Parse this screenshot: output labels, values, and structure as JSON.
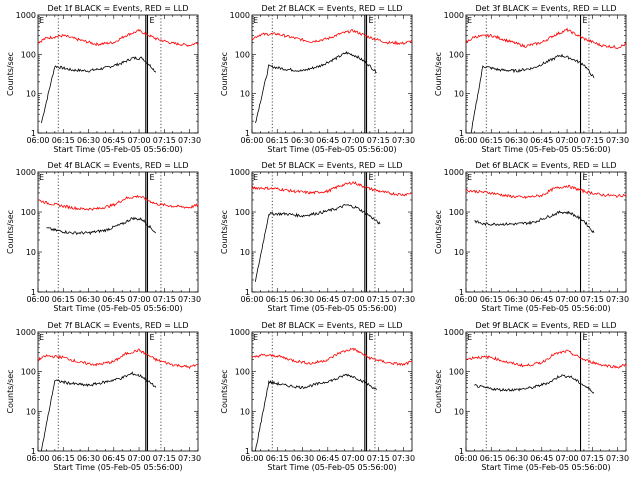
{
  "figure": {
    "xlabel": "Start Time (05-Feb-05 05:56:00)",
    "ylabel": "Counts/sec",
    "xticks": [
      "06:00",
      "06:15",
      "06:30",
      "06:45",
      "07:00",
      "07:15",
      "07:30"
    ],
    "yticks": [
      "1",
      "10",
      "100",
      "1000"
    ],
    "flag_label": "E"
  },
  "chart_data": [
    {
      "type": "line",
      "title": "Det 1f BLACK = Events, RED = LLD",
      "xlim": [
        "06:00",
        "07:35"
      ],
      "ylim": [
        1,
        1000
      ],
      "yscale": "log",
      "series": [
        {
          "color": "#000000",
          "x": [
            "06:02",
            "06:10",
            "06:20",
            "06:30",
            "06:40",
            "06:50",
            "06:56",
            "07:02",
            "07:08",
            "07:10"
          ],
          "y": [
            1.8,
            50,
            40,
            38,
            45,
            60,
            80,
            80,
            45,
            35
          ]
        },
        {
          "color": "#ff0000",
          "x": [
            "06:00",
            "06:05",
            "06:15",
            "06:25",
            "06:35",
            "06:45",
            "06:52",
            "07:00",
            "07:10",
            "07:20",
            "07:30",
            "07:35"
          ],
          "y": [
            200,
            260,
            300,
            230,
            180,
            200,
            300,
            400,
            250,
            190,
            170,
            200
          ]
        }
      ],
      "vlines_dotted": [
        "06:12",
        "07:13"
      ],
      "vlines_solid": [
        "07:04",
        "07:05"
      ]
    },
    {
      "type": "line",
      "title": "Det 2f BLACK = Events, RED = LLD",
      "xlim": [
        "06:00",
        "07:35"
      ],
      "ylim": [
        1,
        1000
      ],
      "yscale": "log",
      "series": [
        {
          "color": "#000000",
          "x": [
            "06:02",
            "06:10",
            "06:20",
            "06:30",
            "06:40",
            "06:50",
            "06:56",
            "07:02",
            "07:08",
            "07:14"
          ],
          "y": [
            1.8,
            50,
            42,
            38,
            50,
            80,
            110,
            90,
            60,
            35
          ]
        },
        {
          "color": "#ff0000",
          "x": [
            "06:00",
            "06:05",
            "06:15",
            "06:25",
            "06:35",
            "06:45",
            "06:52",
            "07:00",
            "07:10",
            "07:20",
            "07:30",
            "07:35"
          ],
          "y": [
            250,
            320,
            330,
            260,
            210,
            250,
            330,
            400,
            270,
            200,
            190,
            220
          ]
        }
      ],
      "vlines_dotted": [
        "06:12",
        "07:13"
      ],
      "vlines_solid": [
        "07:07",
        "07:08"
      ]
    },
    {
      "type": "line",
      "title": "Det 3f BLACK = Events, RED = LLD",
      "xlim": [
        "06:00",
        "07:35"
      ],
      "ylim": [
        1,
        1000
      ],
      "yscale": "log",
      "series": [
        {
          "color": "#000000",
          "x": [
            "06:03",
            "06:10",
            "06:20",
            "06:30",
            "06:40",
            "06:50",
            "06:56",
            "07:02",
            "07:10",
            "07:16"
          ],
          "y": [
            1,
            50,
            40,
            38,
            45,
            70,
            95,
            80,
            55,
            25
          ]
        },
        {
          "color": "#ff0000",
          "x": [
            "06:00",
            "06:05",
            "06:15",
            "06:25",
            "06:35",
            "06:45",
            "06:52",
            "07:00",
            "07:10",
            "07:20",
            "07:30",
            "07:35"
          ],
          "y": [
            200,
            280,
            300,
            220,
            160,
            200,
            300,
            420,
            250,
            170,
            150,
            180
          ]
        }
      ],
      "vlines_dotted": [
        "06:12",
        "07:13"
      ],
      "vlines_solid": [
        "07:08"
      ]
    },
    {
      "type": "line",
      "title": "Det 4f BLACK = Events, RED = LLD",
      "xlim": [
        "06:00",
        "07:35"
      ],
      "ylim": [
        1,
        1000
      ],
      "yscale": "log",
      "series": [
        {
          "color": "#000000",
          "x": [
            "06:05",
            "06:10",
            "06:20",
            "06:30",
            "06:40",
            "06:50",
            "06:56",
            "07:02",
            "07:10"
          ],
          "y": [
            40,
            35,
            30,
            30,
            35,
            50,
            70,
            65,
            30
          ]
        },
        {
          "color": "#ff0000",
          "x": [
            "06:00",
            "06:05",
            "06:15",
            "06:25",
            "06:35",
            "06:45",
            "06:52",
            "07:00",
            "07:10",
            "07:20",
            "07:30",
            "07:35"
          ],
          "y": [
            200,
            170,
            140,
            120,
            120,
            150,
            220,
            250,
            160,
            140,
            130,
            150
          ]
        }
      ],
      "vlines_dotted": [
        "06:12",
        "07:13"
      ],
      "vlines_solid": [
        "07:04",
        "07:05"
      ]
    },
    {
      "type": "line",
      "title": "Det 5f BLACK = Events, RED = LLD",
      "xlim": [
        "06:00",
        "07:35"
      ],
      "ylim": [
        1,
        1000
      ],
      "yscale": "log",
      "series": [
        {
          "color": "#000000",
          "x": [
            "06:02",
            "06:10",
            "06:20",
            "06:30",
            "06:40",
            "06:50",
            "06:56",
            "07:02",
            "07:10",
            "07:16"
          ],
          "y": [
            1.8,
            90,
            90,
            80,
            95,
            120,
            150,
            130,
            80,
            50
          ]
        },
        {
          "color": "#ff0000",
          "x": [
            "06:00",
            "06:05",
            "06:15",
            "06:25",
            "06:35",
            "06:45",
            "06:52",
            "07:00",
            "07:10",
            "07:20",
            "07:30",
            "07:35"
          ],
          "y": [
            400,
            400,
            380,
            330,
            300,
            330,
            450,
            550,
            380,
            300,
            270,
            300
          ]
        }
      ],
      "vlines_dotted": [
        "06:12",
        "07:13"
      ],
      "vlines_solid": [
        "07:07",
        "07:08"
      ]
    },
    {
      "type": "line",
      "title": "Det 6f BLACK = Events, RED = LLD",
      "xlim": [
        "06:00",
        "07:35"
      ],
      "ylim": [
        1,
        1000
      ],
      "yscale": "log",
      "series": [
        {
          "color": "#000000",
          "x": [
            "06:05",
            "06:10",
            "06:20",
            "06:30",
            "06:40",
            "06:50",
            "06:56",
            "07:02",
            "07:10",
            "07:16"
          ],
          "y": [
            60,
            50,
            50,
            50,
            55,
            80,
            100,
            95,
            60,
            30
          ]
        },
        {
          "color": "#ff0000",
          "x": [
            "06:00",
            "06:05",
            "06:15",
            "06:25",
            "06:35",
            "06:45",
            "06:52",
            "07:00",
            "07:10",
            "07:20",
            "07:30",
            "07:35"
          ],
          "y": [
            350,
            330,
            300,
            250,
            230,
            260,
            380,
            450,
            330,
            270,
            250,
            270
          ]
        }
      ],
      "vlines_dotted": [
        "06:12",
        "07:13"
      ],
      "vlines_solid": [
        "07:08"
      ]
    },
    {
      "type": "line",
      "title": "Det 7f BLACK = Events, RED = LLD",
      "xlim": [
        "06:00",
        "07:35"
      ],
      "ylim": [
        1,
        1000
      ],
      "yscale": "log",
      "series": [
        {
          "color": "#000000",
          "x": [
            "06:02",
            "06:10",
            "06:20",
            "06:30",
            "06:40",
            "06:50",
            "06:56",
            "07:02",
            "07:10"
          ],
          "y": [
            1,
            60,
            50,
            45,
            55,
            70,
            90,
            75,
            40
          ]
        },
        {
          "color": "#ff0000",
          "x": [
            "06:00",
            "06:05",
            "06:15",
            "06:25",
            "06:35",
            "06:45",
            "06:52",
            "07:00",
            "07:10",
            "07:20",
            "07:30",
            "07:35"
          ],
          "y": [
            200,
            250,
            230,
            170,
            150,
            180,
            280,
            350,
            200,
            150,
            130,
            150
          ]
        }
      ],
      "vlines_dotted": [
        "06:12",
        "07:13"
      ],
      "vlines_solid": [
        "07:04",
        "07:05"
      ]
    },
    {
      "type": "line",
      "title": "Det 8f BLACK = Events, RED = LLD",
      "xlim": [
        "06:00",
        "07:35"
      ],
      "ylim": [
        1,
        1000
      ],
      "yscale": "log",
      "series": [
        {
          "color": "#000000",
          "x": [
            "06:02",
            "06:10",
            "06:20",
            "06:30",
            "06:40",
            "06:50",
            "06:56",
            "07:02",
            "07:10",
            "07:14"
          ],
          "y": [
            1,
            55,
            45,
            40,
            50,
            65,
            85,
            70,
            45,
            35
          ]
        },
        {
          "color": "#ff0000",
          "x": [
            "06:00",
            "06:05",
            "06:15",
            "06:25",
            "06:35",
            "06:45",
            "06:52",
            "07:00",
            "07:10",
            "07:20",
            "07:30",
            "07:35"
          ],
          "y": [
            220,
            260,
            250,
            190,
            160,
            200,
            300,
            380,
            220,
            170,
            150,
            180
          ]
        }
      ],
      "vlines_dotted": [
        "06:12",
        "07:13"
      ],
      "vlines_solid": [
        "07:07",
        "07:08"
      ]
    },
    {
      "type": "line",
      "title": "Det 9f BLACK = Events, RED = LLD",
      "xlim": [
        "06:00",
        "07:35"
      ],
      "ylim": [
        1,
        1000
      ],
      "yscale": "log",
      "series": [
        {
          "color": "#000000",
          "x": [
            "06:05",
            "06:10",
            "06:20",
            "06:30",
            "06:40",
            "06:50",
            "06:56",
            "07:02",
            "07:10",
            "07:16"
          ],
          "y": [
            45,
            40,
            35,
            35,
            40,
            55,
            80,
            75,
            45,
            30
          ]
        },
        {
          "color": "#ff0000",
          "x": [
            "06:00",
            "06:05",
            "06:15",
            "06:25",
            "06:35",
            "06:45",
            "06:52",
            "07:00",
            "07:10",
            "07:20",
            "07:30",
            "07:35"
          ],
          "y": [
            200,
            230,
            230,
            170,
            140,
            170,
            270,
            330,
            200,
            150,
            130,
            150
          ]
        }
      ],
      "vlines_dotted": [
        "06:12",
        "07:13"
      ],
      "vlines_solid": [
        "07:08"
      ]
    }
  ]
}
